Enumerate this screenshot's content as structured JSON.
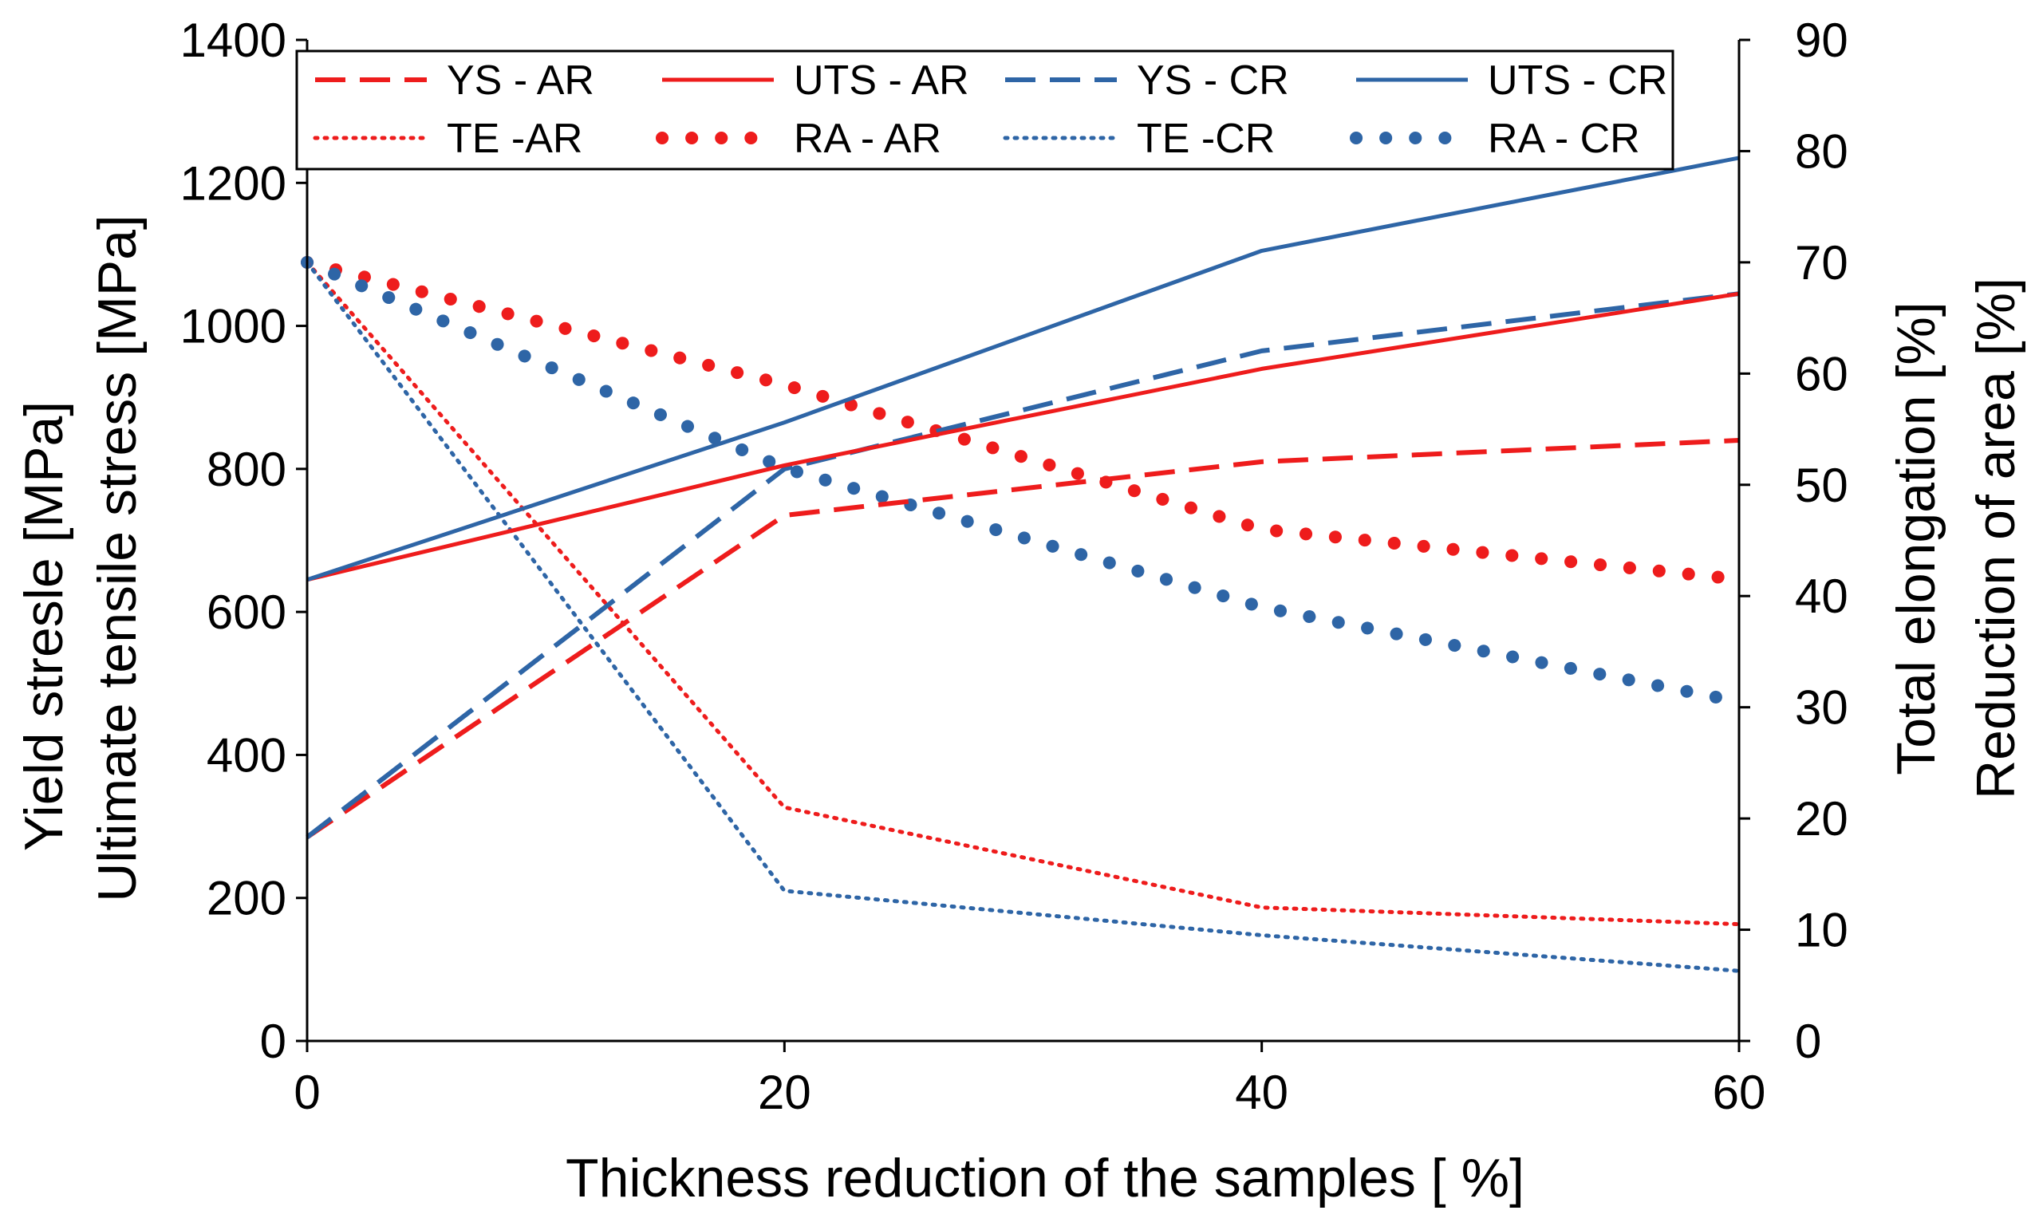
{
  "chart_data": {
    "type": "line",
    "x": [
      0,
      20,
      40,
      60
    ],
    "xlabel": "Thickness reduction of the samples [ %]",
    "ylabel_left_1": "Yield stresle [MPa]",
    "ylabel_left_2": "Ultimate tensile stress [MPa]",
    "ylabel_right_1": "Total elongation  [%]",
    "ylabel_right_2": "Reduction of area   [%]",
    "xlim": [
      0,
      60
    ],
    "ylim_left": [
      0,
      1400
    ],
    "ylim_right": [
      0,
      90
    ],
    "xticks": [
      "0",
      "20",
      "40",
      "60"
    ],
    "yticks_left": [
      "0",
      "200",
      "400",
      "600",
      "800",
      "1000",
      "1200",
      "1400"
    ],
    "yticks_right": [
      "0",
      "10",
      "20",
      "30",
      "40",
      "50",
      "60",
      "70",
      "80",
      "90"
    ],
    "grid": false,
    "legend_position": "top",
    "series": [
      {
        "name": "YS - AR",
        "axis": "left",
        "color": "#ee1c1c",
        "style": "dashed",
        "values": [
          285,
          735,
          810,
          840
        ]
      },
      {
        "name": "UTS - AR",
        "axis": "left",
        "color": "#ee1c1c",
        "style": "solid",
        "values": [
          645,
          805,
          940,
          1045
        ]
      },
      {
        "name": "YS - CR",
        "axis": "left",
        "color": "#2e65a6",
        "style": "dashed",
        "values": [
          285,
          800,
          965,
          1045
        ]
      },
      {
        "name": "UTS - CR",
        "axis": "left",
        "color": "#2e65a6",
        "style": "solid",
        "values": [
          645,
          865,
          1105,
          1235
        ]
      },
      {
        "name": "TE -AR",
        "axis": "right",
        "color": "#ee1c1c",
        "style": "dotted",
        "values": [
          70,
          21,
          12,
          10.5
        ]
      },
      {
        "name": "RA - AR",
        "axis": "right",
        "color": "#ee1c1c",
        "style": "bigdots",
        "values": [
          70,
          59,
          46,
          41.5
        ]
      },
      {
        "name": "TE -CR",
        "axis": "right",
        "color": "#2e65a6",
        "style": "dotted",
        "values": [
          70,
          13.5,
          9.5,
          6.3
        ]
      },
      {
        "name": "RA - CR",
        "axis": "right",
        "color": "#2e65a6",
        "style": "bigdots",
        "values": [
          70,
          51.5,
          39,
          30.5
        ]
      }
    ]
  }
}
